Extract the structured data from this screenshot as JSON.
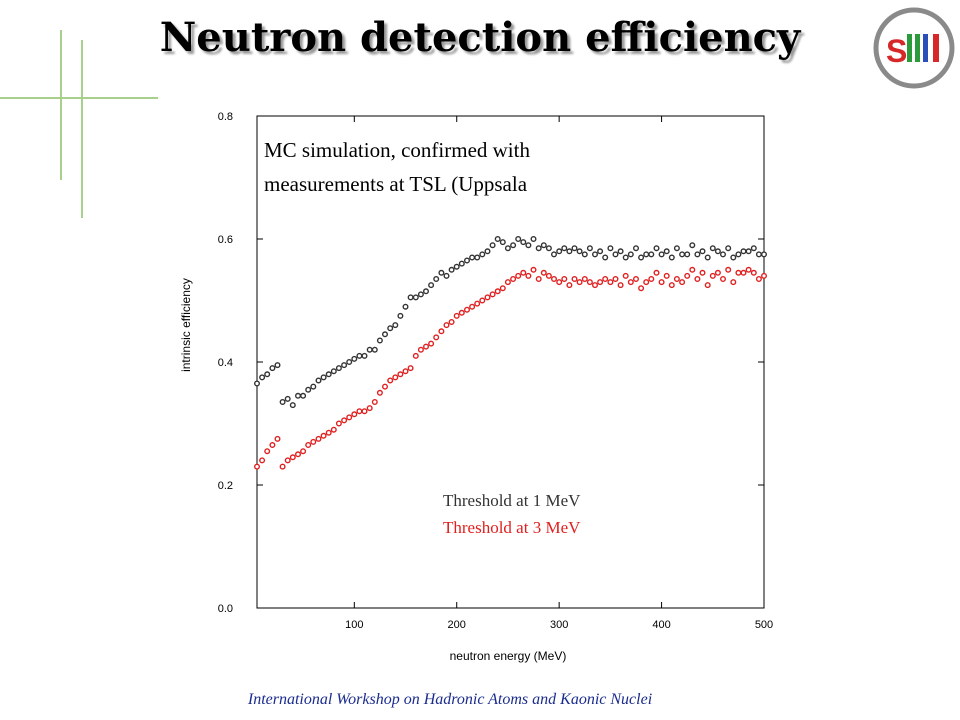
{
  "slide": {
    "title": "Neutron detection efficiency",
    "logo_text": "SMI",
    "footer": "International Workshop on Hadronic Atoms and Kaonic Nuclei"
  },
  "colors": {
    "title_shadow": "#9a9a9a",
    "footer_text": "#1a2c8e",
    "decor_green": "#a8d08d",
    "logo_red": "#d62828",
    "logo_green": "#2a9a3a",
    "logo_blue": "#2a4fb8",
    "series_1": "#333333",
    "series_2": "#e02020"
  },
  "chart_data": {
    "type": "scatter",
    "title": "",
    "xlabel": "neutron energy (MeV)",
    "ylabel": "intrinsic efficiency",
    "xlim": [
      5,
      500
    ],
    "ylim": [
      0.0,
      0.8
    ],
    "xticks": [
      100,
      200,
      300,
      400,
      500
    ],
    "yticks": [
      0.0,
      0.2,
      0.4,
      0.6,
      0.8
    ],
    "ytick_labels": [
      "0.0",
      "0.2",
      "0.4",
      "0.6",
      "0.8"
    ],
    "grid": false,
    "annotation": [
      "MC  simulation, confirmed with",
      "measurements at TSL (Uppsala"
    ],
    "series": [
      {
        "name": "Threshold at 1 MeV",
        "color": "#333333",
        "x": [
          5,
          10,
          15,
          20,
          25,
          30,
          35,
          40,
          45,
          50,
          55,
          60,
          65,
          70,
          75,
          80,
          85,
          90,
          95,
          100,
          105,
          110,
          115,
          120,
          125,
          130,
          135,
          140,
          145,
          150,
          155,
          160,
          165,
          170,
          175,
          180,
          185,
          190,
          195,
          200,
          205,
          210,
          215,
          220,
          225,
          230,
          235,
          240,
          245,
          250,
          255,
          260,
          265,
          270,
          275,
          280,
          285,
          290,
          295,
          300,
          305,
          310,
          315,
          320,
          325,
          330,
          335,
          340,
          345,
          350,
          355,
          360,
          365,
          370,
          375,
          380,
          385,
          390,
          395,
          400,
          405,
          410,
          415,
          420,
          425,
          430,
          435,
          440,
          445,
          450,
          455,
          460,
          465,
          470,
          475,
          480,
          485,
          490,
          495,
          500
        ],
        "y": [
          0.365,
          0.375,
          0.38,
          0.39,
          0.395,
          0.335,
          0.34,
          0.33,
          0.345,
          0.345,
          0.355,
          0.36,
          0.37,
          0.375,
          0.38,
          0.385,
          0.39,
          0.395,
          0.4,
          0.405,
          0.41,
          0.41,
          0.42,
          0.42,
          0.435,
          0.445,
          0.455,
          0.46,
          0.475,
          0.49,
          0.505,
          0.505,
          0.51,
          0.515,
          0.525,
          0.535,
          0.545,
          0.54,
          0.55,
          0.555,
          0.56,
          0.565,
          0.57,
          0.57,
          0.575,
          0.58,
          0.59,
          0.6,
          0.595,
          0.585,
          0.59,
          0.6,
          0.595,
          0.59,
          0.6,
          0.585,
          0.59,
          0.585,
          0.575,
          0.58,
          0.585,
          0.58,
          0.585,
          0.58,
          0.575,
          0.585,
          0.575,
          0.58,
          0.57,
          0.585,
          0.575,
          0.58,
          0.57,
          0.575,
          0.585,
          0.57,
          0.575,
          0.575,
          0.585,
          0.575,
          0.58,
          0.57,
          0.585,
          0.575,
          0.575,
          0.59,
          0.575,
          0.58,
          0.57,
          0.585,
          0.58,
          0.575,
          0.585,
          0.57,
          0.575,
          0.58,
          0.58,
          0.585,
          0.575,
          0.575
        ]
      },
      {
        "name": "Threshold at 3 MeV",
        "color": "#e02020",
        "x": [
          5,
          10,
          15,
          20,
          25,
          30,
          35,
          40,
          45,
          50,
          55,
          60,
          65,
          70,
          75,
          80,
          85,
          90,
          95,
          100,
          105,
          110,
          115,
          120,
          125,
          130,
          135,
          140,
          145,
          150,
          155,
          160,
          165,
          170,
          175,
          180,
          185,
          190,
          195,
          200,
          205,
          210,
          215,
          220,
          225,
          230,
          235,
          240,
          245,
          250,
          255,
          260,
          265,
          270,
          275,
          280,
          285,
          290,
          295,
          300,
          305,
          310,
          315,
          320,
          325,
          330,
          335,
          340,
          345,
          350,
          355,
          360,
          365,
          370,
          375,
          380,
          385,
          390,
          395,
          400,
          405,
          410,
          415,
          420,
          425,
          430,
          435,
          440,
          445,
          450,
          455,
          460,
          465,
          470,
          475,
          480,
          485,
          490,
          495,
          500
        ],
        "y": [
          0.23,
          0.24,
          0.255,
          0.265,
          0.275,
          0.23,
          0.24,
          0.245,
          0.25,
          0.255,
          0.265,
          0.27,
          0.275,
          0.28,
          0.285,
          0.29,
          0.3,
          0.305,
          0.31,
          0.315,
          0.32,
          0.32,
          0.325,
          0.335,
          0.35,
          0.36,
          0.37,
          0.375,
          0.38,
          0.385,
          0.39,
          0.41,
          0.42,
          0.425,
          0.43,
          0.44,
          0.45,
          0.46,
          0.465,
          0.475,
          0.48,
          0.485,
          0.49,
          0.495,
          0.5,
          0.505,
          0.51,
          0.515,
          0.52,
          0.53,
          0.535,
          0.54,
          0.545,
          0.54,
          0.55,
          0.535,
          0.545,
          0.54,
          0.535,
          0.53,
          0.535,
          0.525,
          0.535,
          0.53,
          0.535,
          0.53,
          0.525,
          0.53,
          0.535,
          0.53,
          0.535,
          0.525,
          0.54,
          0.53,
          0.535,
          0.52,
          0.53,
          0.535,
          0.545,
          0.53,
          0.54,
          0.525,
          0.535,
          0.53,
          0.54,
          0.55,
          0.535,
          0.545,
          0.525,
          0.54,
          0.545,
          0.535,
          0.55,
          0.53,
          0.545,
          0.545,
          0.55,
          0.545,
          0.535,
          0.54
        ]
      }
    ]
  }
}
